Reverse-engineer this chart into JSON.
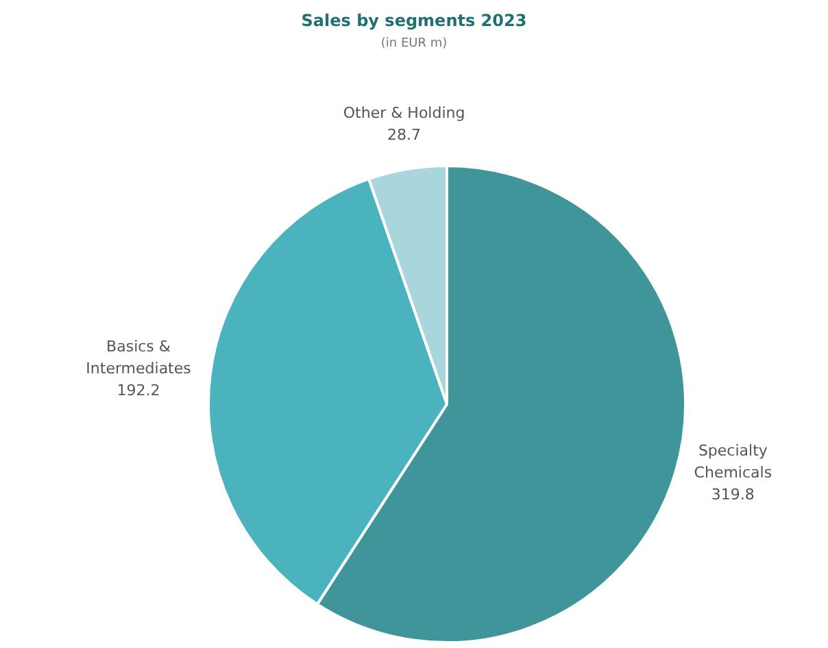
{
  "chart_data": {
    "type": "pie",
    "title": "Sales by segments 2023",
    "subtitle": "(in EUR m)",
    "categories": [
      "Specialty Chemicals",
      "Basics & Intermediates",
      "Other & Holding"
    ],
    "values": [
      319.8,
      192.2,
      28.7
    ],
    "colors": [
      "#3f9599",
      "#4ab3bd",
      "#a9d6dc"
    ],
    "data_labels": true,
    "legend": false
  }
}
